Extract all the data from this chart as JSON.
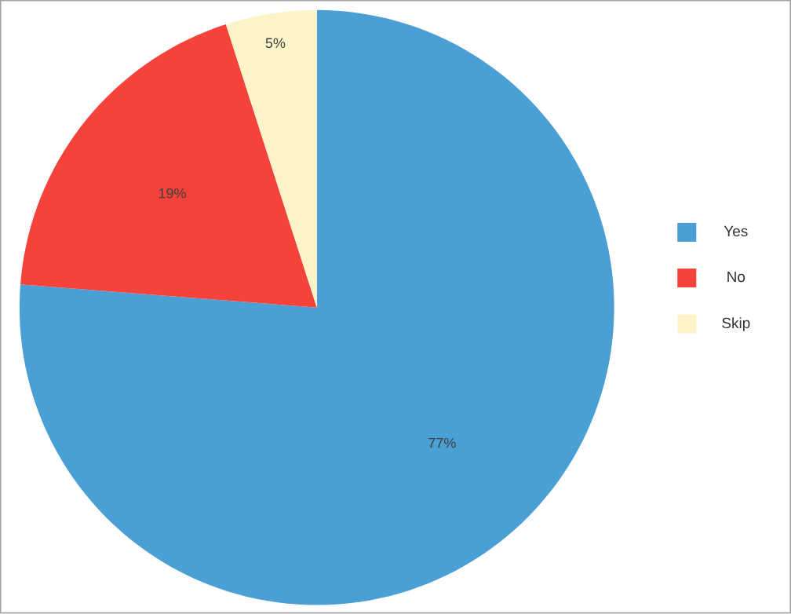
{
  "chart_data": {
    "type": "pie",
    "categories": [
      "Yes",
      "No",
      "Skip"
    ],
    "values": [
      77,
      19,
      5
    ],
    "colors": [
      "#4a9fd4",
      "#f5423a",
      "#fcf4c8"
    ],
    "value_labels": [
      "77%",
      "19%",
      "5%"
    ],
    "legend": "right"
  }
}
